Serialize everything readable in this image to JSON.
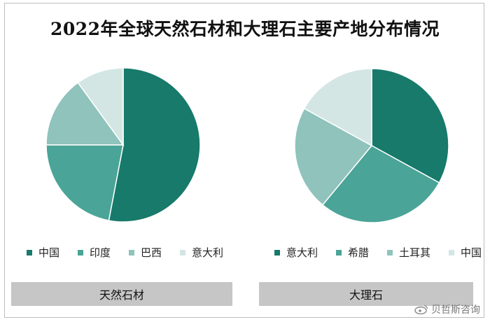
{
  "chart_data": [
    {
      "type": "pie",
      "title": "2022年全球天然石材和大理石主要产地分布情况",
      "caption": "天然石材",
      "categories": [
        "中国",
        "印度",
        "巴西",
        "意大利"
      ],
      "values": [
        53,
        22,
        15,
        10
      ],
      "colors": [
        "#177a6b",
        "#4aa497",
        "#8fc3bc",
        "#d3e6e4"
      ],
      "legend_position": "bottom"
    },
    {
      "type": "pie",
      "caption": "大理石",
      "categories": [
        "意大利",
        "希腊",
        "土耳其",
        "中国"
      ],
      "values": [
        33,
        28,
        22,
        17
      ],
      "colors": [
        "#177a6b",
        "#4aa497",
        "#8fc3bc",
        "#d3e6e4"
      ],
      "legend_position": "bottom"
    }
  ],
  "watermark": {
    "text": "贝哲斯咨询",
    "logo_icon": "weibo-icon"
  }
}
